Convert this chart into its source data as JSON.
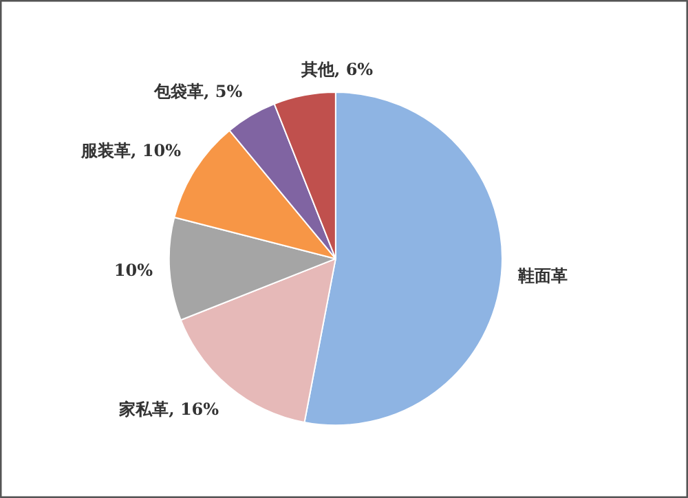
{
  "chart_data": {
    "type": "pie",
    "categories": [
      "鞋面革",
      "家私革",
      null,
      "服装革",
      "包袋革",
      "其他"
    ],
    "values": [
      53,
      16,
      10,
      10,
      5,
      6
    ],
    "value_labels": [
      null,
      "16%",
      "10%",
      "10%",
      "5%",
      "6%"
    ],
    "colors": [
      "#8eb4e3",
      "#e6b9b8",
      "#a5a5a5",
      "#f79646",
      "#8064a2",
      "#c0504d"
    ],
    "legend": false
  }
}
